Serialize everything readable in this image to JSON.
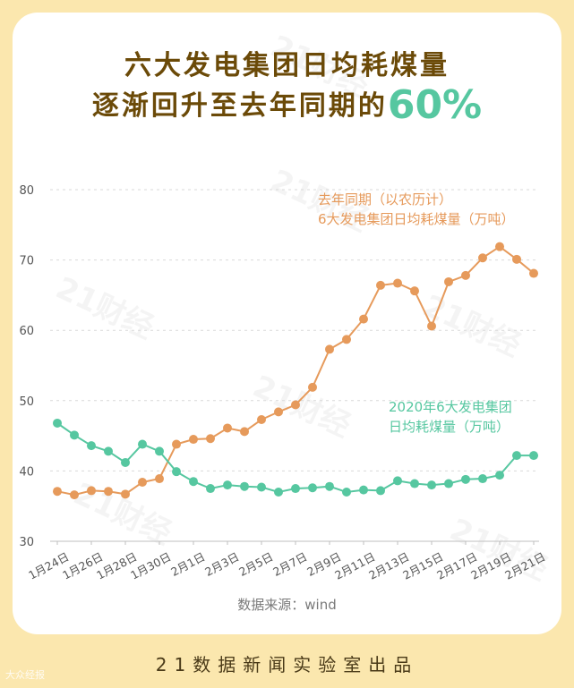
{
  "title_line1": "六大发电集团日均耗煤量",
  "title_line2_prefix": "逐渐回升至去年同期的",
  "title_line2_highlight": "60%",
  "source_text": "数据来源：wind",
  "footer_text": "21数据新闻实验室出品",
  "corner_watermark": "大众经报",
  "watermark_text": "21财经",
  "colors": {
    "background": "#fbe7ae",
    "title": "#6b4a08",
    "highlight": "#56c7a0",
    "series_2020": "#56c7a0",
    "series_lastyear": "#e69a5b",
    "grid": "#d9d9d9",
    "axis_text": "#555555"
  },
  "chart_data": {
    "type": "line",
    "x": [
      "1月24日",
      "1月25日",
      "1月26日",
      "1月27日",
      "1月28日",
      "1月29日",
      "1月30日",
      "1月31日",
      "2月1日",
      "2月2日",
      "2月3日",
      "2月4日",
      "2月5日",
      "2月6日",
      "2月7日",
      "2月8日",
      "2月9日",
      "2月10日",
      "2月11日",
      "2月12日",
      "2月13日",
      "2月14日",
      "2月15日",
      "2月16日",
      "2月17日",
      "2月18日",
      "2月19日",
      "2月20日",
      "2月21日"
    ],
    "x_tick_labels": [
      "1月24日",
      "1月26日",
      "1月28日",
      "1月30日",
      "2月1日",
      "2月3日",
      "2月5日",
      "2月7日",
      "2月9日",
      "2月11日",
      "2月13日",
      "2月15日",
      "2月17日",
      "2月19日",
      "2月21日"
    ],
    "ylim": [
      30,
      80
    ],
    "yticks": [
      30,
      40,
      50,
      60,
      70,
      80
    ],
    "grid": "horizontal-dashed",
    "series": [
      {
        "name": "去年同期（以农历计）6大发电集团日均耗煤量（万吨）",
        "label_lines": [
          "去年同期（以农历计）",
          "6大发电集团日均耗煤量（万吨）"
        ],
        "color": "#e69a5b",
        "values": [
          37.1,
          36.6,
          37.2,
          37.1,
          36.7,
          38.4,
          38.9,
          43.8,
          44.5,
          44.6,
          46.1,
          45.6,
          47.3,
          48.4,
          49.4,
          51.9,
          57.3,
          58.7,
          61.6,
          66.4,
          66.7,
          65.6,
          60.6,
          66.9,
          67.8,
          70.3,
          71.9,
          70.1,
          68.1
        ]
      },
      {
        "name": "2020年6大发电集团日均耗煤量（万吨）",
        "label_lines": [
          "2020年6大发电集团",
          "日均耗煤量（万吨）"
        ],
        "color": "#56c7a0",
        "values": [
          46.8,
          45.1,
          43.6,
          42.8,
          41.2,
          43.8,
          42.8,
          39.9,
          38.5,
          37.5,
          38.0,
          37.8,
          37.7,
          37.0,
          37.5,
          37.6,
          37.8,
          37.0,
          37.3,
          37.2,
          38.6,
          38.2,
          38.0,
          38.2,
          38.8,
          38.9,
          39.4,
          42.2,
          42.2
        ]
      }
    ]
  }
}
